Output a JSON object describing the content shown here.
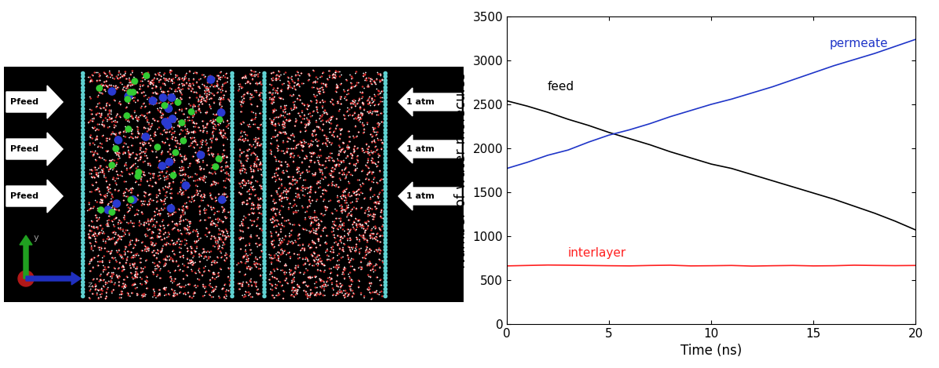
{
  "diagram": {
    "feed_arrows": [
      "Pfeed",
      "Pfeed",
      "Pfeed"
    ],
    "outlet_arrows": [
      "1 atm",
      "1 atm",
      "1 atm"
    ],
    "axes_labels": [
      "y",
      "z"
    ]
  },
  "chart_data": {
    "type": "line",
    "x_label": "Time (ns)",
    "y_label": "Number of water molecules",
    "x": [
      0,
      1,
      2,
      3,
      4,
      5,
      6,
      7,
      8,
      9,
      10,
      11,
      12,
      13,
      14,
      15,
      16,
      17,
      18,
      19,
      20
    ],
    "series": [
      {
        "name": "feed",
        "color": "#000000",
        "values": [
          2540,
          2480,
          2410,
          2330,
          2260,
          2180,
          2110,
          2040,
          1960,
          1890,
          1820,
          1770,
          1700,
          1630,
          1560,
          1490,
          1420,
          1340,
          1260,
          1170,
          1070
        ]
      },
      {
        "name": "permeate",
        "color": "#1f35c8",
        "values": [
          1770,
          1840,
          1920,
          1980,
          2070,
          2150,
          2210,
          2280,
          2360,
          2430,
          2500,
          2560,
          2630,
          2700,
          2780,
          2860,
          2940,
          3010,
          3080,
          3160,
          3240
        ]
      },
      {
        "name": "interlayer",
        "color": "#ff2020",
        "values": [
          660,
          665,
          670,
          668,
          665,
          662,
          660,
          665,
          668,
          660,
          662,
          665,
          658,
          662,
          665,
          660,
          662,
          668,
          665,
          663,
          665
        ]
      }
    ],
    "xlim": [
      0,
      20
    ],
    "xticks": [
      0,
      5,
      10,
      15,
      20
    ],
    "ylim": [
      0,
      3500
    ],
    "yticks": [
      0,
      500,
      1000,
      1500,
      2000,
      2500,
      3000,
      3500
    ],
    "grid": false
  }
}
